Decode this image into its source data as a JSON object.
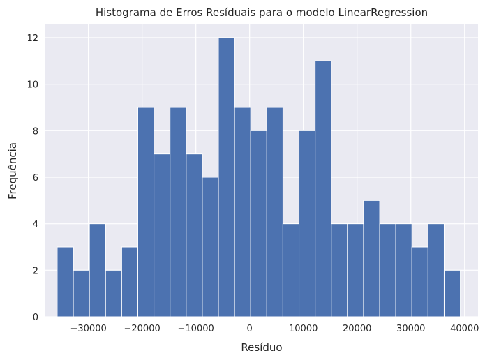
{
  "chart_data": {
    "type": "bar",
    "title": "Histograma de Erros Resíduais para o modelo LinearRegression",
    "xlabel": "Resíduo",
    "ylabel": "Frequência",
    "bin_start": -35800,
    "bin_width": 3000,
    "values": [
      3,
      2,
      4,
      2,
      3,
      9,
      7,
      9,
      7,
      6,
      12,
      9,
      8,
      9,
      4,
      8,
      11,
      4,
      4,
      5,
      4,
      4,
      3,
      4,
      2
    ],
    "xlim": [
      -38000,
      42500
    ],
    "ylim": [
      0,
      12.6
    ],
    "xticks": [
      -30000,
      -20000,
      -10000,
      0,
      10000,
      20000,
      30000,
      40000
    ],
    "xtick_labels": [
      "−30000",
      "−20000",
      "−10000",
      "0",
      "10000",
      "20000",
      "30000",
      "40000"
    ],
    "yticks": [
      0,
      2,
      4,
      6,
      8,
      10,
      12
    ],
    "ytick_labels": [
      "0",
      "2",
      "4",
      "6",
      "8",
      "10",
      "12"
    ],
    "grid": true,
    "colors": {
      "bar": "#4c72b0",
      "background": "#eaeaf2",
      "grid": "#ffffff"
    }
  }
}
